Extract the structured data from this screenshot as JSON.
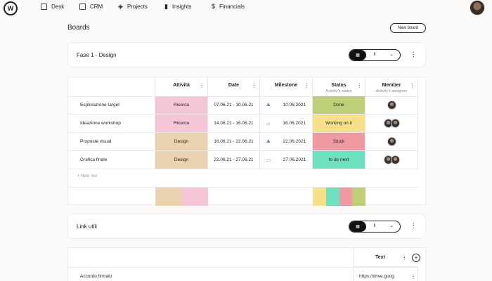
{
  "nav": {
    "logo": "W",
    "items": [
      {
        "label": "Desk",
        "icon": "grid-icon"
      },
      {
        "label": "CRM",
        "icon": "table-icon"
      },
      {
        "label": "Projects",
        "icon": "layers-icon"
      },
      {
        "label": "Insights",
        "icon": "bar-chart-icon"
      },
      {
        "label": "Financials",
        "icon": "dollar-icon"
      }
    ]
  },
  "page": {
    "title": "Boards",
    "new_board": "New board"
  },
  "group1": {
    "title": "Fase 1 - Design",
    "more": "⋮",
    "columns": {
      "attivita": "Attività",
      "date": "Date",
      "milestone": "Milestone",
      "status": "Status",
      "status_sub": "Activity's status",
      "member": "Member",
      "member_sub": "Activity's assignee"
    },
    "rows": [
      {
        "name": "Esplorazione target",
        "attivita": "Ricerca",
        "date": "07.06.21 - 10.06.21",
        "milestone": "10.06.2021",
        "status": "Done",
        "members": 1
      },
      {
        "name": "Ideazione workshop",
        "attivita": "Ricerca",
        "date": "14.06.21 - 16.06.21",
        "milestone": "16.06.2021",
        "status": "Working on it",
        "members": 2
      },
      {
        "name": "Proposte visual",
        "attivita": "Design",
        "date": "16.06.21 - 22.06.21",
        "milestone": "22.06.2021",
        "status": "Stuck",
        "members": 1
      },
      {
        "name": "Grafica finale",
        "attivita": "Design",
        "date": "22.06.21 - 27.06.21",
        "milestone": "27.06.2021",
        "status": "to do next",
        "members": 2
      }
    ],
    "new_row": "+ New row"
  },
  "group2": {
    "title": "Link utili",
    "more": "⋮",
    "text_col": "Text",
    "rows": [
      {
        "name": "Accordo firmato",
        "text": "https://drive.goog"
      }
    ]
  },
  "colors": {
    "ricerca": "#f4c6d8",
    "design": "#ecd3af",
    "done": "#bdd077",
    "working": "#f8e08a",
    "stuck": "#ef9aa1",
    "todo": "#6ee0c0"
  }
}
